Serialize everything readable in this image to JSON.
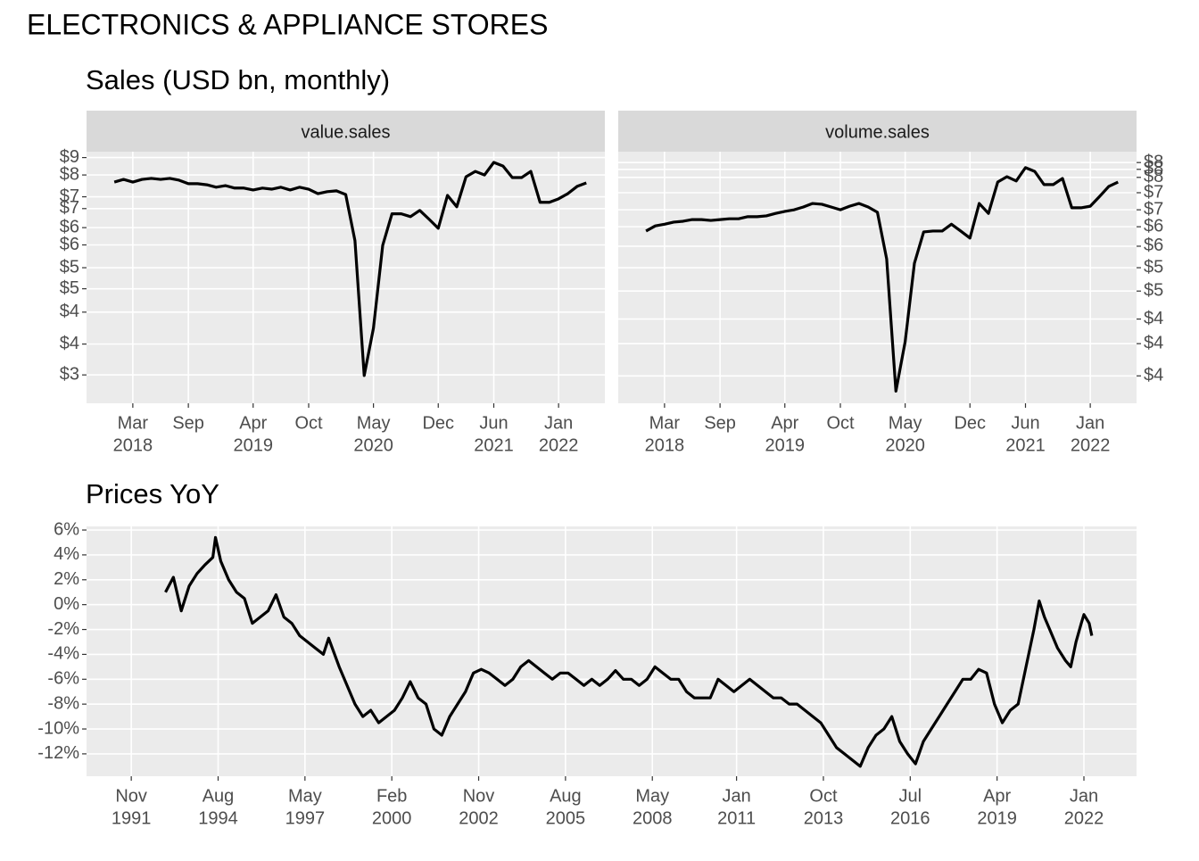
{
  "title": "ELECTRONICS & APPLIANCE STORES",
  "chart_data": [
    {
      "type": "line",
      "title": "Sales (USD bn, monthly)",
      "facet": "value.sales",
      "y_axis_position": "left",
      "log_scale": true,
      "grid": true,
      "color": "#000000",
      "x": [
        "2018-01",
        "2018-02",
        "2018-03",
        "2018-04",
        "2018-05",
        "2018-06",
        "2018-07",
        "2018-08",
        "2018-09",
        "2018-10",
        "2018-11",
        "2018-12",
        "2019-01",
        "2019-02",
        "2019-03",
        "2019-04",
        "2019-05",
        "2019-06",
        "2019-07",
        "2019-08",
        "2019-09",
        "2019-10",
        "2019-11",
        "2019-12",
        "2020-01",
        "2020-02",
        "2020-03",
        "2020-04",
        "2020-05",
        "2020-06",
        "2020-07",
        "2020-08",
        "2020-09",
        "2020-10",
        "2020-11",
        "2020-12",
        "2021-01",
        "2021-02",
        "2021-03",
        "2021-04",
        "2021-05",
        "2021-06",
        "2021-07",
        "2021-08",
        "2021-09",
        "2021-10",
        "2021-11",
        "2021-12",
        "2022-01",
        "2022-02",
        "2022-03",
        "2022-04"
      ],
      "values": [
        7.93,
        8.03,
        7.93,
        8.03,
        8.07,
        8.03,
        8.07,
        8.0,
        7.87,
        7.87,
        7.83,
        7.74,
        7.8,
        7.71,
        7.71,
        7.64,
        7.71,
        7.67,
        7.74,
        7.64,
        7.74,
        7.67,
        7.51,
        7.58,
        7.61,
        7.48,
        6.02,
        3.19,
        3.99,
        5.89,
        6.83,
        6.83,
        6.74,
        6.94,
        6.66,
        6.38,
        7.45,
        7.06,
        8.13,
        8.34,
        8.2,
        8.7,
        8.55,
        8.1,
        8.1,
        8.34,
        7.21,
        7.21,
        7.33,
        7.51,
        7.77,
        7.9
      ],
      "xlim": [
        "2017-10",
        "2022-06"
      ],
      "xticks": [
        {
          "value": "2018-03",
          "label": [
            "Mar",
            "2018"
          ]
        },
        {
          "value": "2018-09",
          "label": [
            "Sep"
          ]
        },
        {
          "value": "2019-04",
          "label": [
            "Apr",
            "2019"
          ]
        },
        {
          "value": "2019-10",
          "label": [
            "Oct"
          ]
        },
        {
          "value": "2020-05",
          "label": [
            "May",
            "2020"
          ]
        },
        {
          "value": "2020-12",
          "label": [
            "Dec"
          ]
        },
        {
          "value": "2021-06",
          "label": [
            "Jun",
            "2021"
          ]
        },
        {
          "value": "2022-01",
          "label": [
            "Jan",
            "2022"
          ]
        }
      ],
      "ylim": [
        2.8,
        9.15
      ],
      "yticks": [
        {
          "value": 3.2,
          "label": "$3"
        },
        {
          "value": 3.7,
          "label": "$4"
        },
        {
          "value": 4.3,
          "label": "$4"
        },
        {
          "value": 4.8,
          "label": "$5"
        },
        {
          "value": 5.3,
          "label": "$5"
        },
        {
          "value": 5.9,
          "label": "$6"
        },
        {
          "value": 6.4,
          "label": "$6"
        },
        {
          "value": 7.0,
          "label": "$7"
        },
        {
          "value": 7.4,
          "label": "$7"
        },
        {
          "value": 8.2,
          "label": "$8"
        },
        {
          "value": 8.9,
          "label": "$9"
        }
      ]
    },
    {
      "type": "line",
      "facet": "volume.sales",
      "y_axis_position": "right",
      "log_scale": true,
      "grid": true,
      "color": "#000000",
      "x": [
        "2018-01",
        "2018-02",
        "2018-03",
        "2018-04",
        "2018-05",
        "2018-06",
        "2018-07",
        "2018-08",
        "2018-09",
        "2018-10",
        "2018-11",
        "2018-12",
        "2019-01",
        "2019-02",
        "2019-03",
        "2019-04",
        "2019-05",
        "2019-06",
        "2019-07",
        "2019-08",
        "2019-09",
        "2019-10",
        "2019-11",
        "2019-12",
        "2020-01",
        "2020-02",
        "2020-03",
        "2020-04",
        "2020-05",
        "2020-06",
        "2020-07",
        "2020-08",
        "2020-09",
        "2020-10",
        "2020-11",
        "2020-12",
        "2021-01",
        "2021-02",
        "2021-03",
        "2021-04",
        "2021-05",
        "2021-06",
        "2021-07",
        "2021-08",
        "2021-09",
        "2021-10",
        "2021-11",
        "2021-12",
        "2022-01",
        "2022-02",
        "2022-03",
        "2022-04"
      ],
      "values": [
        6.18,
        6.3,
        6.34,
        6.39,
        6.41,
        6.45,
        6.45,
        6.43,
        6.45,
        6.47,
        6.47,
        6.52,
        6.52,
        6.54,
        6.6,
        6.65,
        6.69,
        6.76,
        6.85,
        6.83,
        6.76,
        6.69,
        6.78,
        6.85,
        6.76,
        6.63,
        5.57,
        3.4,
        4.09,
        5.48,
        6.16,
        6.18,
        6.18,
        6.34,
        6.18,
        6.02,
        6.85,
        6.6,
        7.42,
        7.57,
        7.45,
        7.83,
        7.72,
        7.35,
        7.35,
        7.52,
        6.74,
        6.74,
        6.78,
        7.03,
        7.3,
        7.42
      ],
      "xlim": [
        "2017-10",
        "2022-06"
      ],
      "xticks": [
        {
          "value": "2018-03",
          "label": [
            "Mar",
            "2018"
          ]
        },
        {
          "value": "2018-09",
          "label": [
            "Sep"
          ]
        },
        {
          "value": "2019-04",
          "label": [
            "Apr",
            "2019"
          ]
        },
        {
          "value": "2019-10",
          "label": [
            "Oct"
          ]
        },
        {
          "value": "2020-05",
          "label": [
            "May",
            "2020"
          ]
        },
        {
          "value": "2020-12",
          "label": [
            "Dec"
          ]
        },
        {
          "value": "2021-06",
          "label": [
            "Jun",
            "2021"
          ]
        },
        {
          "value": "2022-01",
          "label": [
            "Jan",
            "2022"
          ]
        }
      ],
      "ylim": [
        3.25,
        8.31
      ],
      "yticks": [
        {
          "value": 3.6,
          "label": "$4"
        },
        {
          "value": 4.06,
          "label": "$4"
        },
        {
          "value": 4.45,
          "label": "$4"
        },
        {
          "value": 4.94,
          "label": "$5"
        },
        {
          "value": 5.39,
          "label": "$5"
        },
        {
          "value": 5.84,
          "label": "$6"
        },
        {
          "value": 6.28,
          "label": "$6"
        },
        {
          "value": 6.69,
          "label": "$7"
        },
        {
          "value": 7.13,
          "label": "$7"
        },
        {
          "value": 7.55,
          "label": "$8"
        },
        {
          "value": 7.78,
          "label": "$8"
        },
        {
          "value": 7.98,
          "label": "$8"
        }
      ]
    },
    {
      "type": "line",
      "title": "Prices YoY",
      "y_axis_position": "left",
      "log_scale": false,
      "grid": true,
      "color": "#000000",
      "x": [
        "1992-12",
        "1993-03",
        "1993-06",
        "1993-09",
        "1993-12",
        "1994-03",
        "1994-06",
        "1994-07",
        "1994-09",
        "1994-12",
        "1995-03",
        "1995-06",
        "1995-09",
        "1995-12",
        "1996-03",
        "1996-06",
        "1996-09",
        "1996-12",
        "1997-03",
        "1997-06",
        "1997-09",
        "1997-12",
        "1998-02",
        "1998-06",
        "1998-09",
        "1998-12",
        "1999-03",
        "1999-06",
        "1999-09",
        "1999-12",
        "2000-03",
        "2000-06",
        "2000-09",
        "2000-12",
        "2001-03",
        "2001-06",
        "2001-09",
        "2001-12",
        "2002-03",
        "2002-06",
        "2002-09",
        "2002-12",
        "2003-03",
        "2003-06",
        "2003-09",
        "2003-12",
        "2004-03",
        "2004-06",
        "2004-09",
        "2004-12",
        "2005-03",
        "2005-06",
        "2005-09",
        "2005-12",
        "2006-03",
        "2006-06",
        "2006-09",
        "2006-12",
        "2007-03",
        "2007-06",
        "2007-09",
        "2007-12",
        "2008-03",
        "2008-06",
        "2008-09",
        "2008-12",
        "2009-03",
        "2009-06",
        "2009-09",
        "2009-12",
        "2010-03",
        "2010-06",
        "2010-09",
        "2010-12",
        "2011-03",
        "2011-06",
        "2011-09",
        "2011-12",
        "2012-03",
        "2012-06",
        "2012-09",
        "2012-12",
        "2013-03",
        "2013-06",
        "2013-09",
        "2013-12",
        "2014-03",
        "2014-06",
        "2014-09",
        "2014-12",
        "2015-03",
        "2015-06",
        "2015-09",
        "2015-12",
        "2016-03",
        "2016-06",
        "2016-09",
        "2016-12",
        "2017-03",
        "2017-06",
        "2017-09",
        "2017-12",
        "2018-03",
        "2018-06",
        "2018-09",
        "2018-12",
        "2019-03",
        "2019-06",
        "2019-09",
        "2019-12",
        "2020-03",
        "2020-06",
        "2020-08",
        "2020-10",
        "2020-12",
        "2021-03",
        "2021-06",
        "2021-08",
        "2021-10",
        "2021-12",
        "2022-01",
        "2022-03",
        "2022-04"
      ],
      "values": [
        1.0,
        2.2,
        -0.5,
        1.5,
        2.5,
        3.2,
        3.8,
        5.4,
        3.5,
        2.0,
        1.0,
        0.5,
        -1.5,
        -1.0,
        -0.5,
        0.8,
        -1.0,
        -1.5,
        -2.5,
        -3.0,
        -3.5,
        -4.0,
        -2.7,
        -5.0,
        -6.5,
        -8.0,
        -9.0,
        -8.5,
        -9.5,
        -9.0,
        -8.5,
        -7.5,
        -6.2,
        -7.5,
        -8.0,
        -10.0,
        -10.5,
        -9.0,
        -8.0,
        -7.0,
        -5.5,
        -5.2,
        -5.5,
        -6.0,
        -6.5,
        -6.0,
        -5.0,
        -4.5,
        -5.0,
        -5.5,
        -6.0,
        -5.5,
        -5.5,
        -6.0,
        -6.5,
        -6.0,
        -6.5,
        -6.0,
        -5.3,
        -6.0,
        -6.0,
        -6.5,
        -6.0,
        -5.0,
        -5.5,
        -6.0,
        -6.0,
        -7.0,
        -7.5,
        -7.5,
        -7.5,
        -6.0,
        -6.5,
        -7.0,
        -6.5,
        -6.0,
        -6.5,
        -7.0,
        -7.5,
        -7.5,
        -8.0,
        -8.0,
        -8.5,
        -9.0,
        -9.5,
        -10.5,
        -11.5,
        -12.0,
        -12.5,
        -13.0,
        -11.5,
        -10.5,
        -10.0,
        -9.0,
        -11.0,
        -12.0,
        -12.8,
        -11.0,
        -10.0,
        -9.0,
        -8.0,
        -7.0,
        -6.0,
        -6.0,
        -5.2,
        -5.5,
        -8.0,
        -9.5,
        -8.5,
        -8.0,
        -5.0,
        -2.0,
        0.3,
        -1.0,
        -2.0,
        -3.5,
        -4.5,
        -5.0,
        -3.0,
        -1.5,
        -0.8,
        -1.5,
        -2.5
      ],
      "xlim": [
        "1990-06",
        "2023-09"
      ],
      "xticks": [
        {
          "value": "1991-11",
          "label": [
            "Nov",
            "1991"
          ]
        },
        {
          "value": "1994-08",
          "label": [
            "Aug",
            "1994"
          ]
        },
        {
          "value": "1997-05",
          "label": [
            "May",
            "1997"
          ]
        },
        {
          "value": "2000-02",
          "label": [
            "Feb",
            "2000"
          ]
        },
        {
          "value": "2002-11",
          "label": [
            "Nov",
            "2002"
          ]
        },
        {
          "value": "2005-08",
          "label": [
            "Aug",
            "2005"
          ]
        },
        {
          "value": "2008-05",
          "label": [
            "May",
            "2008"
          ]
        },
        {
          "value": "2011-01",
          "label": [
            "Jan",
            "2011"
          ]
        },
        {
          "value": "2013-10",
          "label": [
            "Oct",
            "2013"
          ]
        },
        {
          "value": "2016-07",
          "label": [
            "Jul",
            "2016"
          ]
        },
        {
          "value": "2019-04",
          "label": [
            "Apr",
            "2019"
          ]
        },
        {
          "value": "2022-01",
          "label": [
            "Jan",
            "2022"
          ]
        }
      ],
      "ylim": [
        -13.8,
        6.29
      ],
      "yticks": [
        {
          "value": -12,
          "label": "-12%"
        },
        {
          "value": -10,
          "label": "-10%"
        },
        {
          "value": -8,
          "label": "-8%"
        },
        {
          "value": -6,
          "label": "-6%"
        },
        {
          "value": -4,
          "label": "-4%"
        },
        {
          "value": -2,
          "label": "-2%"
        },
        {
          "value": 0,
          "label": "0%"
        },
        {
          "value": 2,
          "label": "2%"
        },
        {
          "value": 4,
          "label": "4%"
        },
        {
          "value": 6,
          "label": "6%"
        }
      ]
    }
  ]
}
